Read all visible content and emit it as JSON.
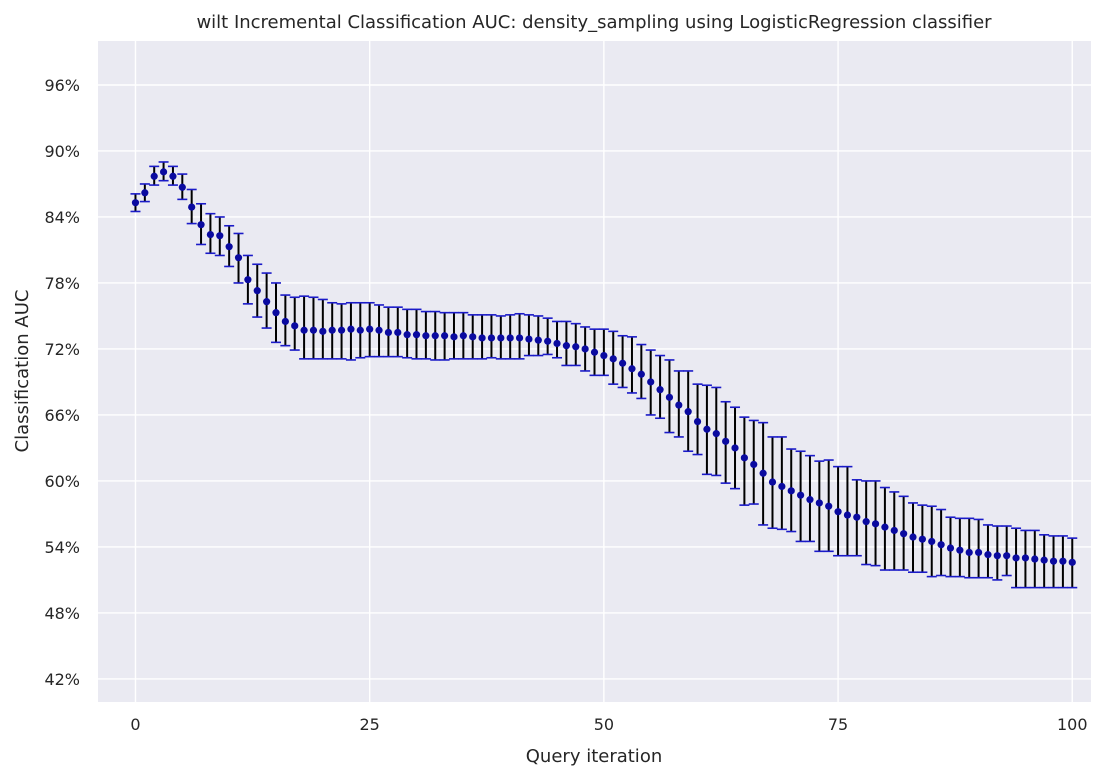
{
  "chart_data": {
    "type": "scatter",
    "title": "wilt Incremental Classification AUC: density_sampling using LogisticRegression classifier",
    "xlabel": "Query iteration",
    "ylabel": "Classification AUC",
    "xlim": [
      -4,
      102
    ],
    "ylim": [
      0.399,
      1.0
    ],
    "xticks": [
      0,
      25,
      50,
      75,
      100
    ],
    "xtick_labels": [
      "0",
      "25",
      "50",
      "75",
      "100"
    ],
    "yticks": [
      0.42,
      0.48,
      0.54,
      0.6,
      0.66,
      0.72,
      0.78,
      0.84,
      0.9,
      0.96
    ],
    "ytick_labels": [
      "42%",
      "48%",
      "54%",
      "60%",
      "66%",
      "72%",
      "78%",
      "84%",
      "90%",
      "96%"
    ],
    "grid": true,
    "colors": {
      "background": "#eaeaf2",
      "grid": "#ffffff",
      "marker": "#0a0aa0",
      "errorbar": "#000000",
      "cap": "#1a1ac8"
    },
    "x": [
      0,
      1,
      2,
      3,
      4,
      5,
      6,
      7,
      8,
      9,
      10,
      11,
      12,
      13,
      14,
      15,
      16,
      17,
      18,
      19,
      20,
      21,
      22,
      23,
      24,
      25,
      26,
      27,
      28,
      29,
      30,
      31,
      32,
      33,
      34,
      35,
      36,
      37,
      38,
      39,
      40,
      41,
      42,
      43,
      44,
      45,
      46,
      47,
      48,
      49,
      50,
      51,
      52,
      53,
      54,
      55,
      56,
      57,
      58,
      59,
      60,
      61,
      62,
      63,
      64,
      65,
      66,
      67,
      68,
      69,
      70,
      71,
      72,
      73,
      74,
      75,
      76,
      77,
      78,
      79,
      80,
      81,
      82,
      83,
      84,
      85,
      86,
      87,
      88,
      89,
      90,
      91,
      92,
      93,
      94,
      95,
      96,
      97,
      98,
      99,
      100
    ],
    "y": [
      0.853,
      0.862,
      0.877,
      0.881,
      0.877,
      0.867,
      0.849,
      0.833,
      0.824,
      0.823,
      0.813,
      0.803,
      0.783,
      0.773,
      0.763,
      0.753,
      0.745,
      0.741,
      0.737,
      0.737,
      0.736,
      0.737,
      0.737,
      0.738,
      0.737,
      0.738,
      0.737,
      0.735,
      0.735,
      0.733,
      0.733,
      0.732,
      0.732,
      0.732,
      0.731,
      0.732,
      0.731,
      0.73,
      0.73,
      0.73,
      0.73,
      0.73,
      0.729,
      0.728,
      0.727,
      0.725,
      0.723,
      0.722,
      0.72,
      0.717,
      0.714,
      0.711,
      0.707,
      0.702,
      0.697,
      0.69,
      0.683,
      0.676,
      0.669,
      0.663,
      0.654,
      0.647,
      0.643,
      0.636,
      0.63,
      0.621,
      0.615,
      0.607,
      0.599,
      0.595,
      0.591,
      0.587,
      0.583,
      0.58,
      0.577,
      0.572,
      0.569,
      0.567,
      0.563,
      0.561,
      0.558,
      0.555,
      0.552,
      0.549,
      0.547,
      0.545,
      0.542,
      0.539,
      0.537,
      0.535,
      0.535,
      0.533,
      0.532,
      0.532,
      0.53,
      0.53,
      0.529,
      0.528,
      0.527,
      0.527,
      0.526
    ],
    "err_low": [
      0.845,
      0.854,
      0.869,
      0.873,
      0.869,
      0.856,
      0.834,
      0.815,
      0.807,
      0.805,
      0.795,
      0.78,
      0.761,
      0.749,
      0.739,
      0.726,
      0.723,
      0.719,
      0.711,
      0.711,
      0.711,
      0.711,
      0.711,
      0.71,
      0.712,
      0.713,
      0.713,
      0.713,
      0.713,
      0.712,
      0.711,
      0.711,
      0.71,
      0.71,
      0.711,
      0.711,
      0.711,
      0.711,
      0.712,
      0.711,
      0.711,
      0.711,
      0.714,
      0.714,
      0.715,
      0.712,
      0.705,
      0.705,
      0.7,
      0.696,
      0.696,
      0.688,
      0.685,
      0.68,
      0.675,
      0.66,
      0.657,
      0.644,
      0.64,
      0.627,
      0.624,
      0.606,
      0.605,
      0.598,
      0.593,
      0.578,
      0.579,
      0.56,
      0.557,
      0.556,
      0.554,
      0.545,
      0.545,
      0.536,
      0.536,
      0.532,
      0.532,
      0.532,
      0.524,
      0.523,
      0.519,
      0.519,
      0.519,
      0.517,
      0.517,
      0.513,
      0.514,
      0.513,
      0.513,
      0.512,
      0.512,
      0.512,
      0.51,
      0.514,
      0.503,
      0.503,
      0.503,
      0.503,
      0.503,
      0.503,
      0.503
    ],
    "err_high": [
      0.861,
      0.87,
      0.886,
      0.89,
      0.886,
      0.879,
      0.865,
      0.852,
      0.843,
      0.84,
      0.832,
      0.825,
      0.805,
      0.797,
      0.789,
      0.78,
      0.769,
      0.767,
      0.768,
      0.767,
      0.765,
      0.762,
      0.761,
      0.762,
      0.762,
      0.762,
      0.76,
      0.758,
      0.758,
      0.756,
      0.756,
      0.754,
      0.754,
      0.753,
      0.753,
      0.753,
      0.751,
      0.751,
      0.751,
      0.75,
      0.751,
      0.752,
      0.751,
      0.75,
      0.748,
      0.745,
      0.745,
      0.743,
      0.74,
      0.738,
      0.738,
      0.736,
      0.732,
      0.731,
      0.724,
      0.719,
      0.714,
      0.71,
      0.7,
      0.7,
      0.688,
      0.687,
      0.685,
      0.672,
      0.667,
      0.658,
      0.655,
      0.653,
      0.64,
      0.64,
      0.629,
      0.627,
      0.623,
      0.618,
      0.619,
      0.613,
      0.613,
      0.601,
      0.6,
      0.6,
      0.594,
      0.59,
      0.586,
      0.58,
      0.578,
      0.577,
      0.574,
      0.567,
      0.566,
      0.566,
      0.565,
      0.56,
      0.559,
      0.559,
      0.557,
      0.555,
      0.555,
      0.551,
      0.55,
      0.55,
      0.548
    ]
  }
}
